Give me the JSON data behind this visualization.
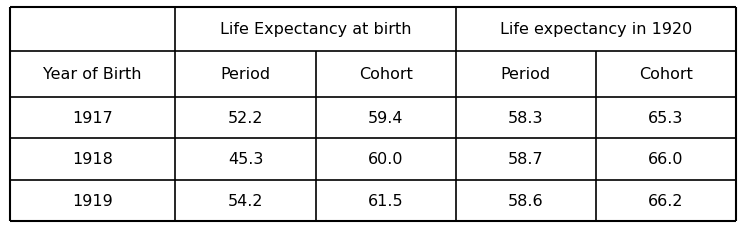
{
  "col_header_row1_left": "Life Expectancy at birth",
  "col_header_row1_right": "Life expectancy in 1920",
  "col_header_row2": [
    "Year of Birth",
    "Period",
    "Cohort",
    "Period",
    "Cohort"
  ],
  "rows": [
    [
      "1917",
      "52.2",
      "59.4",
      "58.3",
      "65.3"
    ],
    [
      "1918",
      "45.3",
      "60.0",
      "58.7",
      "66.0"
    ],
    [
      "1919",
      "54.2",
      "61.5",
      "58.6",
      "66.2"
    ]
  ],
  "background_color": "#ffffff",
  "border_color": "#000000",
  "text_color": "#000000",
  "font_size": 11.5,
  "lw": 1.2
}
